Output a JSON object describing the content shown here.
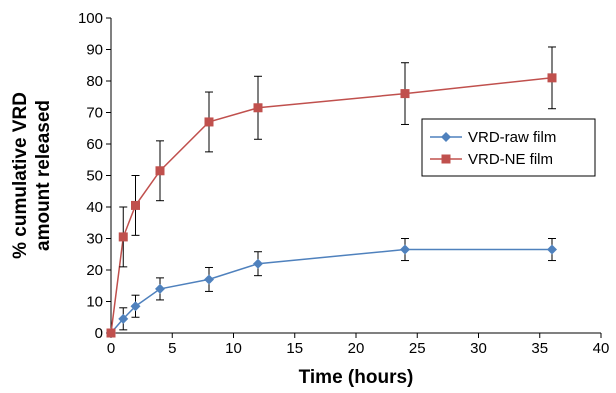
{
  "chart_data": {
    "type": "line",
    "xlabel": "Time (hours)",
    "ylabel_lines": [
      "% cumulative VRD",
      "amount released"
    ],
    "xlim": [
      0,
      40
    ],
    "ylim": [
      0,
      100
    ],
    "xticks": [
      0,
      5,
      10,
      15,
      20,
      25,
      30,
      35,
      40
    ],
    "yticks": [
      0,
      10,
      20,
      30,
      40,
      50,
      60,
      70,
      80,
      90,
      100
    ],
    "grid": false,
    "legend_position": "right",
    "series": [
      {
        "name": "VRD-raw film",
        "color": "#4f81bd",
        "marker": "diamond",
        "points": [
          {
            "x": 0,
            "y": 0,
            "err": 0
          },
          {
            "x": 1,
            "y": 4.5,
            "err": 3.5
          },
          {
            "x": 2,
            "y": 8.5,
            "err": 3.5
          },
          {
            "x": 4,
            "y": 14,
            "err": 3.5
          },
          {
            "x": 8,
            "y": 17,
            "err": 3.8
          },
          {
            "x": 12,
            "y": 22,
            "err": 3.8
          },
          {
            "x": 24,
            "y": 26.5,
            "err": 3.5
          },
          {
            "x": 36,
            "y": 26.5,
            "err": 3.5
          }
        ]
      },
      {
        "name": "VRD-NE film",
        "color": "#c0504d",
        "marker": "square",
        "points": [
          {
            "x": 0,
            "y": 0,
            "err": 0
          },
          {
            "x": 1,
            "y": 30.5,
            "err": 9.5
          },
          {
            "x": 2,
            "y": 40.5,
            "err": 9.5
          },
          {
            "x": 4,
            "y": 51.5,
            "err": 9.5
          },
          {
            "x": 8,
            "y": 67,
            "err": 9.5
          },
          {
            "x": 12,
            "y": 71.5,
            "err": 10
          },
          {
            "x": 24,
            "y": 76,
            "err": 9.8
          },
          {
            "x": 36,
            "y": 81,
            "err": 9.8
          }
        ]
      }
    ]
  }
}
